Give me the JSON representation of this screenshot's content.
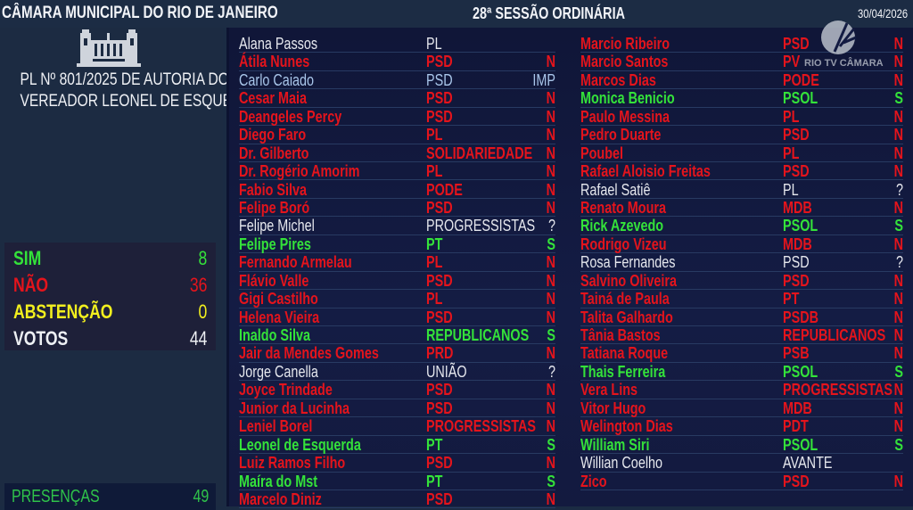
{
  "header": {
    "title": "CÂMARA MUNICIPAL DO RIO DE JANEIRO",
    "session": "28ª SESSÃO ORDINÁRIA",
    "date": "30/04/2026"
  },
  "bill": {
    "line1": "PL Nº 801/2025 DE AUTORIA DO",
    "line2": "VEREADOR LEONEL DE ESQUERDA"
  },
  "tally": [
    {
      "label": "SIM",
      "value": "8",
      "color": "#34e23a"
    },
    {
      "label": "NÃO",
      "value": "36",
      "color": "#e4141c"
    },
    {
      "label": "ABSTENÇÃO",
      "value": "0",
      "color": "#f2ef1e"
    },
    {
      "label": "VOTOS",
      "value": "44",
      "color": "#eef0f4"
    }
  ],
  "presence": {
    "label": "PRESENÇAS",
    "value": "49"
  },
  "logo": {
    "text": "RIO TV CÂMARA",
    "icon": "rio-tv-camara-logo"
  },
  "colors": {
    "red": "#e4141c",
    "green": "#34e23a",
    "white": "#e6e8ee",
    "blue": "#a9c6ea"
  },
  "columns": [
    [
      {
        "name": "Alana Passos",
        "party": "PL",
        "vote": "",
        "color": "white"
      },
      {
        "name": "Átila Nunes",
        "party": "PSD",
        "vote": "N",
        "color": "red"
      },
      {
        "name": "Carlo Caiado",
        "party": "PSD",
        "vote": "IMP",
        "color": "blue"
      },
      {
        "name": "Cesar Maia",
        "party": "PSD",
        "vote": "N",
        "color": "red"
      },
      {
        "name": "Deangeles Percy",
        "party": "PSD",
        "vote": "N",
        "color": "red"
      },
      {
        "name": "Diego Faro",
        "party": "PL",
        "vote": "N",
        "color": "red"
      },
      {
        "name": "Dr. Gilberto",
        "party": "SOLIDARIEDADE",
        "vote": "N",
        "color": "red"
      },
      {
        "name": "Dr. Rogério Amorim",
        "party": "PL",
        "vote": "N",
        "color": "red"
      },
      {
        "name": "Fabio Silva",
        "party": "PODE",
        "vote": "N",
        "color": "red"
      },
      {
        "name": "Felipe Boró",
        "party": "PSD",
        "vote": "N",
        "color": "red"
      },
      {
        "name": "Felipe Michel",
        "party": "PROGRESSISTAS",
        "vote": "?",
        "color": "white"
      },
      {
        "name": "Felipe Pires",
        "party": "PT",
        "vote": "S",
        "color": "green"
      },
      {
        "name": "Fernando Armelau",
        "party": "PL",
        "vote": "N",
        "color": "red"
      },
      {
        "name": "Flávio Valle",
        "party": "PSD",
        "vote": "N",
        "color": "red"
      },
      {
        "name": "Gigi Castilho",
        "party": "PL",
        "vote": "N",
        "color": "red"
      },
      {
        "name": "Helena Vieira",
        "party": "PSD",
        "vote": "N",
        "color": "red"
      },
      {
        "name": "Inaldo Silva",
        "party": "REPUBLICANOS",
        "vote": "S",
        "color": "green"
      },
      {
        "name": "Jair da Mendes Gomes",
        "party": "PRD",
        "vote": "N",
        "color": "red"
      },
      {
        "name": "Jorge Canella",
        "party": "UNIÃO",
        "vote": "?",
        "color": "white"
      },
      {
        "name": "Joyce Trindade",
        "party": "PSD",
        "vote": "N",
        "color": "red"
      },
      {
        "name": "Junior da Lucinha",
        "party": "PSD",
        "vote": "N",
        "color": "red"
      },
      {
        "name": "Leniel Borel",
        "party": "PROGRESSISTAS",
        "vote": "N",
        "color": "red"
      },
      {
        "name": "Leonel de Esquerda",
        "party": "PT",
        "vote": "S",
        "color": "green"
      },
      {
        "name": "Luiz Ramos Filho",
        "party": "PSD",
        "vote": "N",
        "color": "red"
      },
      {
        "name": "Maíra do Mst",
        "party": "PT",
        "vote": "S",
        "color": "green"
      },
      {
        "name": "Marcelo Diniz",
        "party": "PSD",
        "vote": "N",
        "color": "red"
      }
    ],
    [
      {
        "name": "Marcio Ribeiro",
        "party": "PSD",
        "vote": "N",
        "color": "red"
      },
      {
        "name": "Marcio Santos",
        "party": "PV",
        "vote": "N",
        "color": "red"
      },
      {
        "name": "Marcos Dias",
        "party": "PODE",
        "vote": "N",
        "color": "red"
      },
      {
        "name": "Monica Benicio",
        "party": "PSOL",
        "vote": "S",
        "color": "green"
      },
      {
        "name": "Paulo Messina",
        "party": "PL",
        "vote": "N",
        "color": "red"
      },
      {
        "name": "Pedro Duarte",
        "party": "PSD",
        "vote": "N",
        "color": "red"
      },
      {
        "name": "Poubel",
        "party": "PL",
        "vote": "N",
        "color": "red"
      },
      {
        "name": "Rafael Aloisio Freitas",
        "party": "PSD",
        "vote": "N",
        "color": "red"
      },
      {
        "name": "Rafael Satiê",
        "party": "PL",
        "vote": "?",
        "color": "white"
      },
      {
        "name": "Renato Moura",
        "party": "MDB",
        "vote": "N",
        "color": "red"
      },
      {
        "name": "Rick Azevedo",
        "party": "PSOL",
        "vote": "S",
        "color": "green"
      },
      {
        "name": "Rodrigo Vizeu",
        "party": "MDB",
        "vote": "N",
        "color": "red"
      },
      {
        "name": "Rosa Fernandes",
        "party": "PSD",
        "vote": "?",
        "color": "white"
      },
      {
        "name": "Salvino Oliveira",
        "party": "PSD",
        "vote": "N",
        "color": "red"
      },
      {
        "name": "Tainá de Paula",
        "party": "PT",
        "vote": "N",
        "color": "red"
      },
      {
        "name": "Talita Galhardo",
        "party": "PSDB",
        "vote": "N",
        "color": "red"
      },
      {
        "name": "Tânia Bastos",
        "party": "REPUBLICANOS",
        "vote": "N",
        "color": "red"
      },
      {
        "name": "Tatiana Roque",
        "party": "PSB",
        "vote": "N",
        "color": "red"
      },
      {
        "name": "Thais Ferreira",
        "party": "PSOL",
        "vote": "S",
        "color": "green"
      },
      {
        "name": "Vera Lins",
        "party": "PROGRESSISTAS",
        "vote": "N",
        "color": "red"
      },
      {
        "name": "Vitor Hugo",
        "party": "MDB",
        "vote": "N",
        "color": "red"
      },
      {
        "name": "Welington Dias",
        "party": "PDT",
        "vote": "N",
        "color": "red"
      },
      {
        "name": "William Siri",
        "party": "PSOL",
        "vote": "S",
        "color": "green"
      },
      {
        "name": "Willian Coelho",
        "party": "AVANTE",
        "vote": "",
        "color": "white"
      },
      {
        "name": "Zico",
        "party": "PSD",
        "vote": "N",
        "color": "red"
      }
    ]
  ]
}
